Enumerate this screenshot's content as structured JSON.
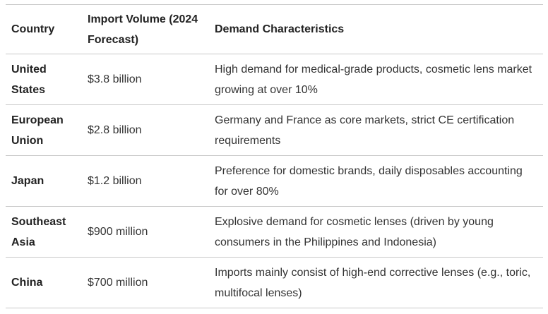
{
  "table": {
    "headers": {
      "country": "Country",
      "volume": "Import Volume (2024 Forecast)",
      "demand": "Demand Characteristics"
    },
    "rows": [
      {
        "country": "United States",
        "volume": "$3.8 billion",
        "demand": "High demand for medical-grade products, cosmetic lens market growing at over 10%"
      },
      {
        "country": "European Union",
        "volume": "$2.8 billion",
        "demand": "Germany and France as core markets, strict CE certification requirements"
      },
      {
        "country": "Japan",
        "volume": "$1.2 billion",
        "demand": "Preference for domestic brands, daily disposables accounting for over 80%"
      },
      {
        "country": "Southeast Asia",
        "volume": "$900 million",
        "demand": "Explosive demand for cosmetic lenses (driven by young consumers in the Philippines and Indonesia)"
      },
      {
        "country": "China",
        "volume": "$700 million",
        "demand": "Imports mainly consist of high-end corrective lenses (e.g., toric, multifocal lenses)"
      }
    ]
  }
}
